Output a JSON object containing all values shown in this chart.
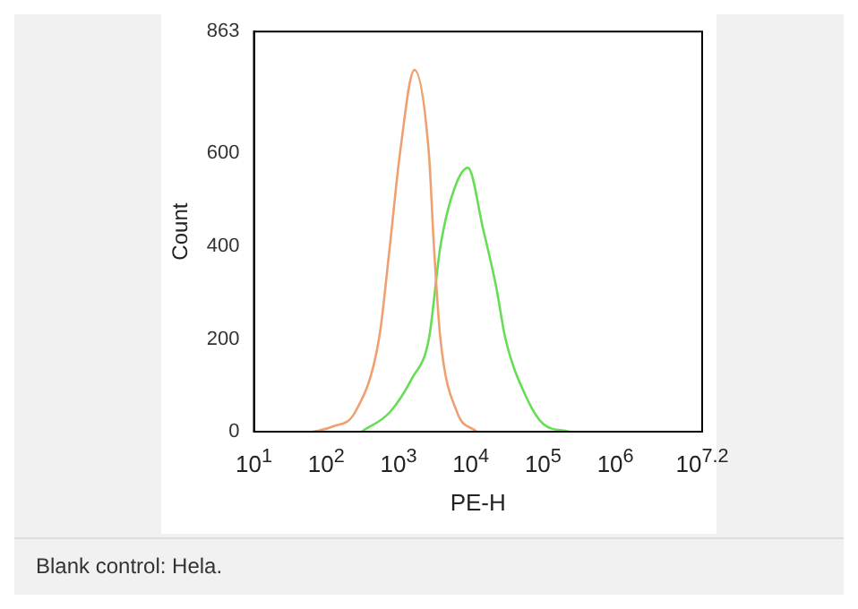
{
  "chart_data": {
    "type": "line",
    "xlabel": "PE-H",
    "ylabel": "Count",
    "log": "x",
    "grid": false,
    "marker": "none",
    "line_style": "solid",
    "xlim": [
      10,
      15848932
    ],
    "ylim": [
      0,
      863
    ],
    "xticks": [
      {
        "value": 10,
        "label": "10$^{1}$"
      },
      {
        "value": 100,
        "label": "10$^{2}$"
      },
      {
        "value": 1000,
        "label": "10$^{3}$"
      },
      {
        "value": 10000,
        "label": "10$^{4}$"
      },
      {
        "value": 100000,
        "label": "10$^{5}$"
      },
      {
        "value": 1000000,
        "label": "10$^{6}$"
      },
      {
        "value": 15848932,
        "label": "10$^{7.2}$"
      }
    ],
    "yticks": [
      0,
      200,
      400,
      600,
      863
    ],
    "series": [
      {
        "color": "#f0a070",
        "x": [
          66,
          123,
          251,
          537,
          759,
          1047,
          1660,
          2630,
          3090,
          3800,
          6460,
          12000
        ],
        "values": [
          0,
          11,
          42,
          200,
          400,
          600,
          780,
          600,
          400,
          200,
          42,
          0
        ]
      },
      {
        "color": "#66dd55",
        "x": [
          309,
          759,
          1550,
          2630,
          3800,
          5890,
          9120,
          14800,
          22400,
          30200,
          61700,
          100000,
          229000
        ],
        "values": [
          0,
          42,
          116,
          200,
          400,
          523,
          569,
          437,
          313,
          200,
          67,
          17,
          0
        ]
      }
    ],
    "annotations": [
      "Blank control: Hela."
    ]
  }
}
